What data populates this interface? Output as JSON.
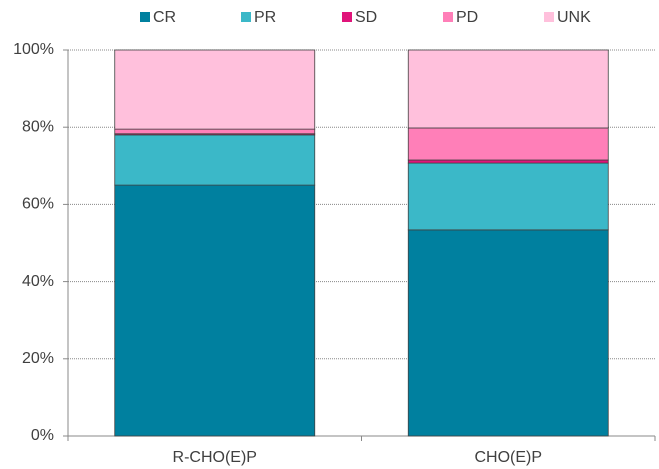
{
  "chart_data": {
    "type": "stacked_bar",
    "categories": [
      "R-CHO(E)P",
      "CHO(E)P"
    ],
    "series": [
      {
        "name": "CR",
        "color": "#00809f",
        "values": [
          65,
          53.4
        ]
      },
      {
        "name": "PR",
        "color": "#3bb8c8",
        "values": [
          13,
          17.3
        ]
      },
      {
        "name": "SD",
        "color": "#e0147a",
        "values": [
          0.3,
          0.8
        ]
      },
      {
        "name": "PD",
        "color": "#ff7fb8",
        "values": [
          1.2,
          8.3
        ]
      },
      {
        "name": "UNK",
        "color": "#ffc0dc",
        "values": [
          20.5,
          20.2
        ]
      }
    ],
    "ylim": [
      0,
      100
    ],
    "yticks": [
      {
        "value": 0,
        "label": "0%"
      },
      {
        "value": 20,
        "label": "20%"
      },
      {
        "value": 40,
        "label": "40%"
      },
      {
        "value": 60,
        "label": "60%"
      },
      {
        "value": 80,
        "label": "80%"
      },
      {
        "value": 100,
        "label": "100%"
      }
    ],
    "grid": true,
    "legend": "top"
  }
}
